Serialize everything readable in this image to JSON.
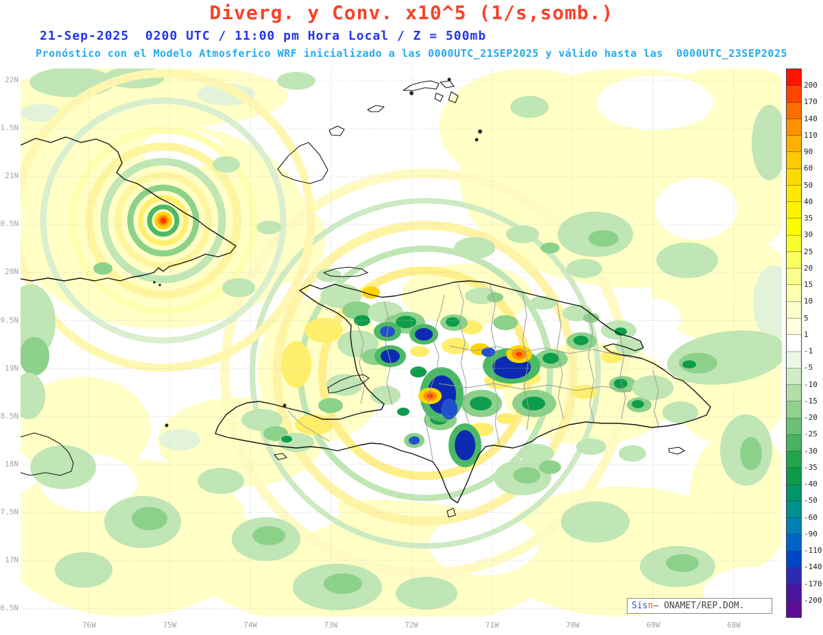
{
  "header": {
    "title": "Diverg. y Conv. x10^5 (1/s,somb.)",
    "subtitle_datetime": "21-Sep-2025  0200 UTC / 11:00 pm Hora Local / Z = 500mb",
    "subtitle_model": "Pronóstico con el Modelo Atmosferico WRF inicializado a las 0000UTC_21SEP2025 y válido hasta las  0000UTC_23SEP2025",
    "colors": {
      "title": "#f9422a",
      "datetime": "#2233ee",
      "model": "#22aaee"
    }
  },
  "axes": {
    "lat_ticks": [
      "22N",
      "1.5N",
      "21N",
      "0.5N",
      "20N",
      "9.5N",
      "19N",
      "8.5N",
      "18N",
      "7.5N",
      "17N",
      "6.5N"
    ],
    "lon_ticks": [
      "76W",
      "75W",
      "74W",
      "73W",
      "72W",
      "71W",
      "70W",
      "69W",
      "68W"
    ]
  },
  "colorbar": {
    "labels": [
      "200",
      "170",
      "140",
      "110",
      "90",
      "60",
      "50",
      "40",
      "35",
      "30",
      "25",
      "20",
      "15",
      "10",
      "5",
      "1",
      "-1",
      "-5",
      "-10",
      "-15",
      "-20",
      "-25",
      "-30",
      "-35",
      "-40",
      "-50",
      "-60",
      "-90",
      "-110",
      "-140",
      "-170",
      "-200"
    ],
    "colors": [
      "#fd1500",
      "#fd4400",
      "#fd6d00",
      "#fd9100",
      "#fdb000",
      "#fdc900",
      "#fdda00",
      "#fde800",
      "#fdf300",
      "#fdfb00",
      "#f8fd2e",
      "#faff60",
      "#fcff8c",
      "#fdffb0",
      "#feffcc",
      "#ffffe2",
      "#ffffff",
      "#e9f7e3",
      "#d0ecc6",
      "#b2dfa8",
      "#90d18c",
      "#6cc274",
      "#47b35f",
      "#23a54d",
      "#0d9b49",
      "#009667",
      "#00918d",
      "#0080b4",
      "#0063c8",
      "#0046c8",
      "#2b2bb4",
      "#4b16a0",
      "#5e0d96"
    ]
  },
  "attribution": {
    "brand": "Sis",
    "symbol": "π",
    "text": "— ONAMET/REP.DOM.",
    "colors": {
      "brand": "#2b55cc",
      "symbol": "#e87a1e",
      "text": "#444444"
    }
  }
}
